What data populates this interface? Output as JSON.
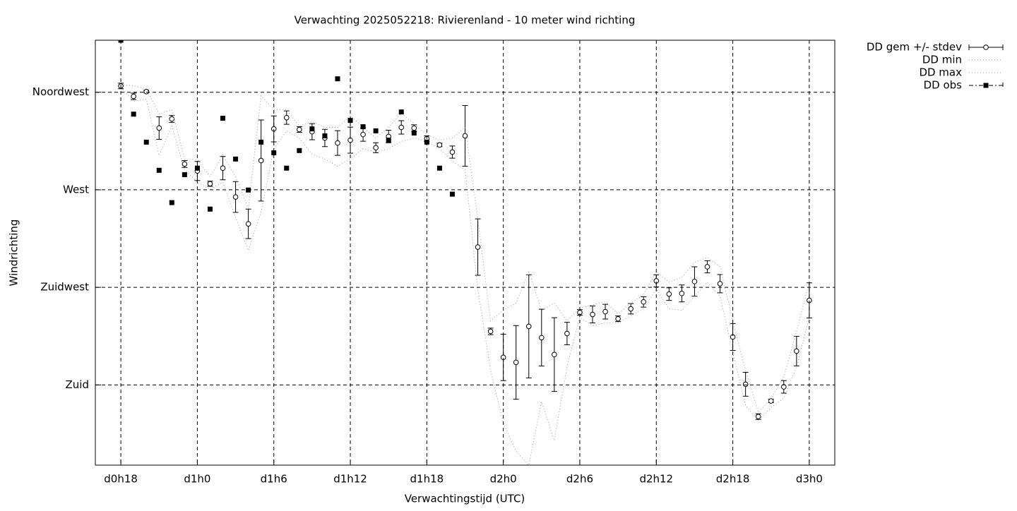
{
  "chart_data": {
    "type": "errorbar-line",
    "title": "Verwachting 2025052218: Rivierenland - 10 meter wind richting",
    "x_label": "Verwachtingstijd (UTC)",
    "y_label": "Windrichting",
    "x": [
      18,
      19,
      20,
      21,
      22,
      23,
      24,
      25,
      26,
      27,
      28,
      29,
      30,
      31,
      32,
      33,
      34,
      35,
      36,
      37,
      38,
      39,
      40,
      41,
      42,
      43,
      44,
      45,
      46,
      47,
      48,
      49,
      50,
      51,
      52,
      53,
      54,
      55,
      56,
      57,
      58,
      59,
      60,
      61,
      62,
      63,
      64,
      65,
      66,
      67,
      68,
      69,
      70,
      71,
      72
    ],
    "xlim": [
      16,
      74
    ],
    "xticks": [
      {
        "value": 18,
        "label": "d0h18"
      },
      {
        "value": 24,
        "label": "d1h0"
      },
      {
        "value": 30,
        "label": "d1h6"
      },
      {
        "value": 36,
        "label": "d1h12"
      },
      {
        "value": 42,
        "label": "d1h18"
      },
      {
        "value": 48,
        "label": "d2h0"
      },
      {
        "value": 54,
        "label": "d2h6"
      },
      {
        "value": 60,
        "label": "d2h12"
      },
      {
        "value": 66,
        "label": "d2h18"
      },
      {
        "value": 72,
        "label": "d3h0"
      }
    ],
    "ylim": [
      143,
      339
    ],
    "yticks": [
      {
        "value": 180,
        "label": "Zuid"
      },
      {
        "value": 225,
        "label": "Zuidwest"
      },
      {
        "value": 270,
        "label": "West"
      },
      {
        "value": 315,
        "label": "Noordwest"
      }
    ],
    "grid": true,
    "legend": "outside-top-right",
    "series": [
      {
        "name": "DD gem +/- stdev",
        "color": "#000000",
        "style": "errorbar",
        "values": [
          317.9,
          313.1,
          315.3,
          298.5,
          302.7,
          281.9,
          278.7,
          272.8,
          280,
          266.7,
          254.3,
          283.5,
          298.1,
          303.3,
          297.8,
          296.8,
          293.9,
          291.6,
          292.9,
          295.5,
          289.4,
          294.6,
          298.8,
          298.5,
          293.6,
          290.7,
          287.4,
          294.9,
          243.6,
          204.7,
          192.7,
          190.4,
          207,
          201.8,
          194,
          203.7,
          213.4,
          212.5,
          213.8,
          210.5,
          215.1,
          218.3,
          228,
          221.9,
          222.2,
          227.7,
          234.5,
          226.7,
          202.1,
          180.3,
          165.4,
          172.6,
          179.1,
          195.6,
          219
        ],
        "errors": [
          1.3,
          1.5,
          0.6,
          5.2,
          1.6,
          1.6,
          4.4,
          1.2,
          5.4,
          7.1,
          6.8,
          18.7,
          6,
          3.1,
          1.3,
          3.7,
          4,
          5.7,
          6,
          3.1,
          2.3,
          2.9,
          3.1,
          1.5,
          1.3,
          0.8,
          2.8,
          14,
          13,
          1.5,
          10.7,
          17,
          23.8,
          13.1,
          17,
          5.2,
          1.3,
          3.9,
          3.4,
          1.3,
          2.4,
          2.4,
          2.8,
          2.9,
          3.9,
          6.8,
          2.8,
          4.2,
          6.2,
          5.5,
          1.3,
          0.8,
          2.9,
          6.8,
          8.1
        ]
      },
      {
        "name": "DD min",
        "color": "#999999",
        "style": "dotted",
        "values": [
          317.3,
          310.8,
          311.8,
          285.8,
          299.4,
          279.3,
          273.5,
          270.2,
          273.5,
          257.2,
          242,
          259.8,
          289,
          297.2,
          293.9,
          286.4,
          284.2,
          280.9,
          284.2,
          289,
          287.4,
          289,
          292.3,
          293.9,
          292.3,
          289,
          283.2,
          279.3,
          224.2,
          186.8,
          162.4,
          149.4,
          143,
          172.2,
          154.4,
          188.4,
          211.2,
          207.3,
          208.6,
          208.6,
          211.8,
          215.1,
          224.2,
          215.1,
          214.4,
          220.9,
          227.4,
          220.9,
          195,
          170.6,
          163.5,
          169.6,
          173.8,
          188.4,
          211.2
        ]
      },
      {
        "name": "DD max",
        "color": "#999999",
        "style": "dotted",
        "values": [
          318.6,
          318,
          316.6,
          305,
          307,
          284,
          284,
          276,
          286,
          276,
          261.5,
          313.4,
          307,
          307,
          299.4,
          301.4,
          298.8,
          298.8,
          304.3,
          298.8,
          293.9,
          298.8,
          305.3,
          300.4,
          295.5,
          292.9,
          293.9,
          298.8,
          256.6,
          209.5,
          214.4,
          217.7,
          232.3,
          214.4,
          217.7,
          209.5,
          215.4,
          217,
          218.3,
          212.8,
          217.7,
          221.6,
          232.3,
          227.4,
          229.7,
          236.5,
          238.8,
          234.5,
          209.5,
          186.8,
          167.3,
          173.8,
          183.6,
          204.7,
          227.4
        ]
      },
      {
        "name": "DD obs",
        "color": "#000000",
        "style": "points",
        "values": [
          339,
          304.9,
          292,
          279,
          264.1,
          277,
          280,
          261.1,
          303,
          284.2,
          269.9,
          292,
          287.1,
          280,
          288.1,
          298.1,
          294.9,
          321.2,
          302,
          299.1,
          297.2,
          292.9,
          305.9,
          296.2,
          292,
          280,
          268,
          null,
          null,
          null,
          null,
          null,
          null,
          null,
          null,
          null,
          null,
          null,
          null,
          null,
          null,
          null,
          null,
          null,
          null,
          null,
          null,
          null,
          null,
          null,
          null,
          null,
          null,
          null,
          null
        ]
      }
    ]
  }
}
